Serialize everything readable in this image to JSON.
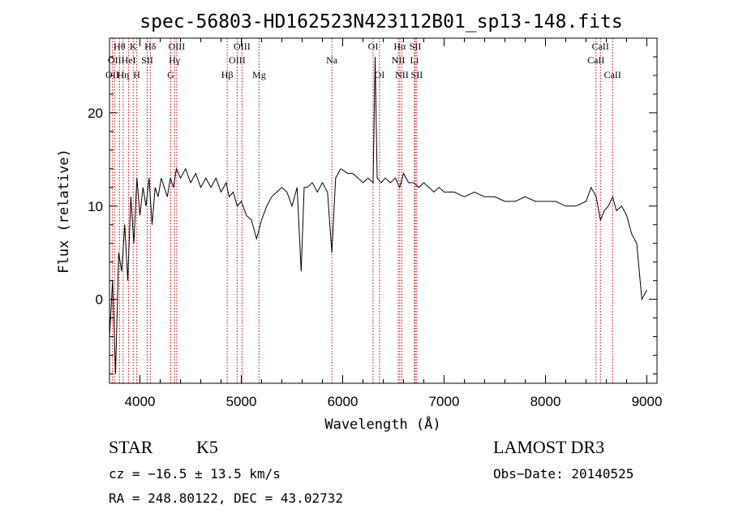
{
  "chart_data": {
    "type": "line",
    "title": "spec-56803-HD162523N423112B01_sp13-148.fits",
    "xlabel": "Wavelength (Å)",
    "ylabel": "Flux (relative)",
    "xlim": [
      3700,
      9100
    ],
    "ylim": [
      -9,
      28
    ],
    "x_ticks": [
      4000,
      5000,
      6000,
      7000,
      8000,
      9000
    ],
    "x_tick_labels": [
      "4000",
      "5000",
      "6000",
      "7000",
      "8000",
      "9000"
    ],
    "y_ticks": [
      0,
      10,
      20
    ],
    "y_tick_labels": [
      "0",
      "10",
      "20"
    ],
    "series": [
      {
        "name": "flux",
        "x": [
          3700,
          3730,
          3760,
          3790,
          3820,
          3850,
          3880,
          3910,
          3940,
          3970,
          4000,
          4030,
          4060,
          4090,
          4120,
          4150,
          4180,
          4210,
          4240,
          4270,
          4300,
          4330,
          4360,
          4400,
          4450,
          4500,
          4550,
          4600,
          4650,
          4700,
          4750,
          4800,
          4850,
          4880,
          4920,
          4960,
          5000,
          5050,
          5100,
          5150,
          5175,
          5200,
          5250,
          5300,
          5350,
          5400,
          5450,
          5500,
          5550,
          5590,
          5620,
          5650,
          5700,
          5750,
          5800,
          5850,
          5893,
          5930,
          5980,
          6050,
          6100,
          6150,
          6200,
          6250,
          6300,
          6320,
          6340,
          6380,
          6420,
          6470,
          6520,
          6562,
          6600,
          6650,
          6700,
          6750,
          6800,
          6850,
          6900,
          6950,
          7000,
          7100,
          7200,
          7300,
          7400,
          7500,
          7600,
          7700,
          7800,
          7900,
          8000,
          8100,
          8200,
          8300,
          8400,
          8450,
          8500,
          8542,
          8580,
          8620,
          8662,
          8700,
          8750,
          8800,
          8850,
          8900,
          8950,
          9000
        ],
        "y": [
          -4,
          2,
          -8,
          5,
          3,
          8,
          2,
          11,
          6,
          13,
          9,
          12,
          10,
          13,
          8,
          12,
          11,
          13,
          12,
          11,
          13,
          12,
          14,
          13,
          14,
          12.5,
          13.5,
          12,
          13,
          12,
          13,
          11.5,
          12.5,
          11,
          11.5,
          10,
          10.5,
          9,
          8.5,
          6.5,
          7.5,
          8.5,
          10,
          11,
          11.5,
          12,
          11.5,
          10,
          12,
          3,
          12,
          12,
          12.5,
          11.5,
          12.5,
          11.5,
          5,
          13,
          14,
          13.5,
          13.5,
          13,
          12.5,
          13,
          12.5,
          26,
          13,
          12.5,
          13,
          12.5,
          13,
          12,
          13.5,
          12.5,
          12.5,
          12,
          12.5,
          12,
          11.5,
          12,
          11.5,
          11.5,
          11,
          11.5,
          11,
          11,
          10.5,
          10.5,
          11,
          10.5,
          10.5,
          10.5,
          10,
          10,
          10.5,
          12,
          11,
          8.5,
          9.5,
          10,
          11,
          9.5,
          10,
          9,
          7,
          6,
          0,
          1
        ]
      }
    ],
    "line_markers": [
      {
        "wavelength": 3727,
        "label": "OII",
        "row": 2
      },
      {
        "wavelength": 3750,
        "label": "OII",
        "row": 1
      },
      {
        "wavelength": 3798,
        "label": "Hθ",
        "row": 0
      },
      {
        "wavelength": 3835,
        "label": "Hη",
        "row": 2
      },
      {
        "wavelength": 3889,
        "label": "HeI",
        "row": 1
      },
      {
        "wavelength": 3934,
        "label": "K",
        "row": 0
      },
      {
        "wavelength": 3969,
        "label": "H",
        "row": 2
      },
      {
        "wavelength": 4072,
        "label": "SII",
        "row": 1
      },
      {
        "wavelength": 4102,
        "label": "Hδ",
        "row": 0
      },
      {
        "wavelength": 4304,
        "label": "G",
        "row": 2
      },
      {
        "wavelength": 4341,
        "label": "Hγ",
        "row": 1
      },
      {
        "wavelength": 4363,
        "label": "OIII",
        "row": 0
      },
      {
        "wavelength": 4861,
        "label": "Hβ",
        "row": 2
      },
      {
        "wavelength": 4959,
        "label": "OIII",
        "row": 1
      },
      {
        "wavelength": 5007,
        "label": "OIII",
        "row": 0
      },
      {
        "wavelength": 5175,
        "label": "Mg",
        "row": 2
      },
      {
        "wavelength": 5893,
        "label": "Na",
        "row": 1
      },
      {
        "wavelength": 6300,
        "label": "OI",
        "row": 0
      },
      {
        "wavelength": 6363,
        "label": "OI",
        "row": 2
      },
      {
        "wavelength": 6548,
        "label": "NII",
        "row": 1
      },
      {
        "wavelength": 6563,
        "label": "Hα",
        "row": 0
      },
      {
        "wavelength": 6583,
        "label": "NII",
        "row": 2
      },
      {
        "wavelength": 6707,
        "label": "Li",
        "row": 1
      },
      {
        "wavelength": 6716,
        "label": "SII",
        "row": 0
      },
      {
        "wavelength": 6731,
        "label": "SII",
        "row": 2
      },
      {
        "wavelength": 8498,
        "label": "CaII",
        "row": 1
      },
      {
        "wavelength": 8542,
        "label": "CaII",
        "row": 0
      },
      {
        "wavelength": 8662,
        "label": "CaII",
        "row": 2
      }
    ],
    "marker_color": "#cc0000",
    "line_color": "#000000"
  },
  "info": {
    "object_class": "STAR",
    "subclass": "K5",
    "survey": "LAMOST DR3",
    "redshift": "cz = −16.5 ± 13.5 km/s",
    "obs_date": "Obs−Date: 20140525",
    "coords": "RA = 248.80122, DEC =  43.02732"
  }
}
